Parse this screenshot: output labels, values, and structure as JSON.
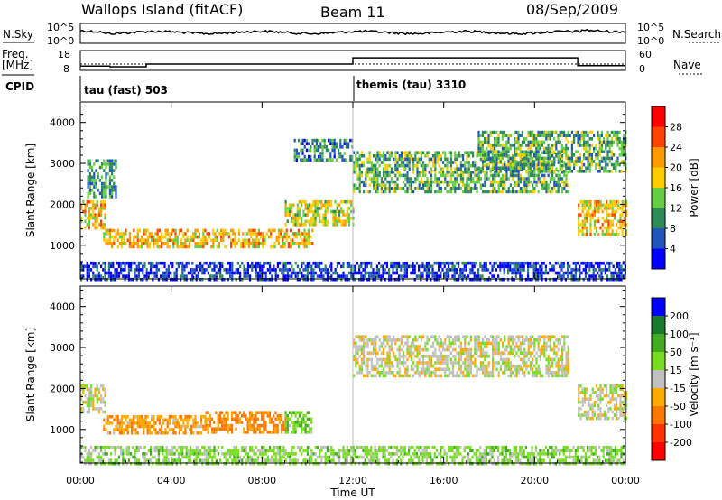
{
  "header": {
    "station": "Wallops Island (fitACF)",
    "beam": "Beam 11",
    "date": "08/Sep/2009"
  },
  "noise_panel": {
    "left_label": "N.Sky",
    "right_label": "N.Search",
    "left_ticks": [
      "10^5",
      "10^0"
    ],
    "right_ticks": [
      "10^5",
      "10^0"
    ]
  },
  "freq_panel": {
    "left_label_line1": "Freq.",
    "left_label_line2": "[MHz]",
    "right_label": "Nave",
    "left_ticks": [
      "18",
      "8"
    ],
    "right_ticks": [
      "60",
      "0"
    ]
  },
  "cpid_panel": {
    "label": "CPID",
    "program1": "tau (fast) 503",
    "program2": "themis (tau) 3310"
  },
  "power_panel": {
    "ylabel": "Slant Range [km]",
    "cbar_label": "Power [dB]",
    "cbar_ticks": [
      "28",
      "24",
      "20",
      "16",
      "12",
      "8",
      "4"
    ]
  },
  "velocity_panel": {
    "ylabel": "Slant Range [km]",
    "cbar_label": "Velocity [m s⁻¹]",
    "cbar_ticks": [
      "200",
      "100",
      "50",
      "15",
      "-15",
      "-50",
      "-100",
      "-200"
    ]
  },
  "colors": {
    "power_scale": [
      "#0000ff",
      "#2255bb",
      "#2e8b57",
      "#66cc44",
      "#ffcc00",
      "#ff9900",
      "#ff4400",
      "#ff0000"
    ],
    "velocity_scale": [
      "#0000ff",
      "#1a7a2e",
      "#44aa22",
      "#77dd22",
      "#c0c0c0",
      "#ffaa00",
      "#ff7700",
      "#ff3300",
      "#ff0000"
    ]
  },
  "chart_data": {
    "type": "heatmap",
    "x_axis": {
      "label": "Time UT",
      "ticks": [
        "00:00",
        "04:00",
        "08:00",
        "12:00",
        "16:00",
        "20:00",
        "00:00"
      ],
      "range_hours": [
        0,
        24
      ]
    },
    "y_axis": {
      "label": "Slant Range [km]",
      "ticks": [
        1000,
        2000,
        3000,
        4000
      ],
      "range_km": [
        180,
        4500
      ]
    },
    "program_change_hour": 12,
    "frequency_mhz": {
      "hours": [
        0,
        1.3,
        1.3,
        2.9,
        2.9,
        12,
        12,
        21.9,
        21.9,
        24
      ],
      "values": [
        10.2,
        10.2,
        9.8,
        9.8,
        11.2,
        11.2,
        14.3,
        14.3,
        10.4,
        10.4
      ]
    },
    "power_regions": [
      {
        "t0": 0.0,
        "t1": 1.1,
        "r0": 1400,
        "r1": 2100,
        "dB": 22
      },
      {
        "t0": 0.3,
        "t1": 1.6,
        "r0": 2200,
        "r1": 3100,
        "dB": 12
      },
      {
        "t0": 1.0,
        "t1": 10.2,
        "r0": 950,
        "r1": 1400,
        "dB": 22
      },
      {
        "t0": 9.0,
        "t1": 12.0,
        "r0": 1500,
        "r1": 2100,
        "dB": 18
      },
      {
        "t0": 9.4,
        "t1": 12.0,
        "r0": 3100,
        "r1": 3600,
        "dB": 10
      },
      {
        "t0": 12.0,
        "t1": 21.5,
        "r0": 2300,
        "r1": 3300,
        "dB": 14
      },
      {
        "t0": 17.5,
        "t1": 24.0,
        "r0": 2800,
        "r1": 3800,
        "dB": 14
      },
      {
        "t0": 21.9,
        "t1": 24.0,
        "r0": 1300,
        "r1": 2100,
        "dB": 22
      },
      {
        "t0": 0.0,
        "t1": 24.0,
        "r0": 200,
        "r1": 600,
        "dB": 6
      }
    ],
    "velocity_regions": [
      {
        "t0": 0.0,
        "t1": 1.1,
        "r0": 1400,
        "r1": 2100,
        "v": 0
      },
      {
        "t0": 1.0,
        "t1": 5.5,
        "r0": 950,
        "r1": 1350,
        "v": -40
      },
      {
        "t0": 5.5,
        "t1": 9.0,
        "r0": 950,
        "r1": 1450,
        "v": -60
      },
      {
        "t0": 9.0,
        "t1": 10.2,
        "r0": 950,
        "r1": 1450,
        "v": 40
      },
      {
        "t0": 12.0,
        "t1": 21.5,
        "r0": 2300,
        "r1": 3300,
        "v": 0
      },
      {
        "t0": 21.9,
        "t1": 24.0,
        "r0": 1300,
        "r1": 2100,
        "v": 0
      },
      {
        "t0": 0.0,
        "t1": 24.0,
        "r0": 200,
        "r1": 600,
        "v": 30
      }
    ]
  }
}
